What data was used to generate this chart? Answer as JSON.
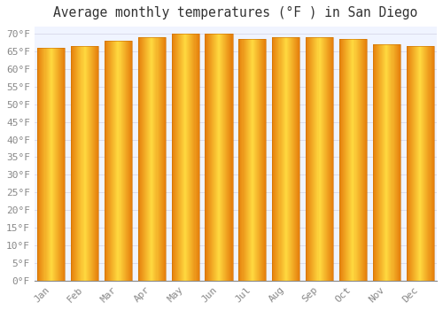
{
  "title": "Average monthly temperatures (°F ) in San Diego",
  "months": [
    "Jan",
    "Feb",
    "Mar",
    "Apr",
    "May",
    "Jun",
    "Jul",
    "Aug",
    "Sep",
    "Oct",
    "Nov",
    "Dec"
  ],
  "values": [
    66,
    66.5,
    68,
    69,
    70,
    70,
    68.5,
    69,
    69,
    68.5,
    67,
    66.5
  ],
  "ylim": [
    0,
    72
  ],
  "yticks": [
    0,
    5,
    10,
    15,
    20,
    25,
    30,
    35,
    40,
    45,
    50,
    55,
    60,
    65,
    70
  ],
  "bar_color_left": "#E88000",
  "bar_color_center": "#FFD050",
  "bar_color_right": "#E88000",
  "background_color": "#FFFFFF",
  "plot_bg_color": "#F0F4FF",
  "grid_color": "#D8D8E8",
  "title_fontsize": 10.5,
  "tick_fontsize": 8,
  "title_color": "#333333",
  "tick_color": "#888888",
  "bar_width": 0.82
}
